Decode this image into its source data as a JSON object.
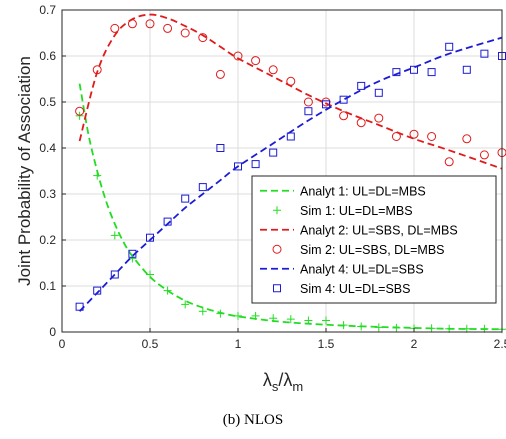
{
  "caption": "(b) NLOS",
  "colors": {
    "green": "#22dd22",
    "red": "#e01b1b",
    "blue": "#1c1cd6",
    "axis": "#262626",
    "grid": "#dcdcdc"
  },
  "chart_data": {
    "type": "line",
    "title": "",
    "ylabel": "Joint Probability of Association",
    "xlabel": {
      "main": "λ",
      "sub1": "s",
      "sep": "/λ",
      "sub2": "m"
    },
    "xlim": [
      0,
      2.5
    ],
    "ylim": [
      0,
      0.7
    ],
    "xticks": [
      0,
      0.5,
      1,
      1.5,
      2,
      2.5
    ],
    "xtick_labels": [
      "0",
      "0.5",
      "1",
      "1.5",
      "2",
      "2.5"
    ],
    "yticks": [
      0,
      0.1,
      0.2,
      0.3,
      0.4,
      0.5,
      0.6,
      0.7
    ],
    "ytick_labels": [
      "0",
      "0.1",
      "0.2",
      "0.3",
      "0.4",
      "0.5",
      "0.6",
      "0.7"
    ],
    "grid": true,
    "legend_position": "center-right",
    "series": [
      {
        "name": "Analyt 1: UL=DL=MBS",
        "style": "dashed",
        "color": "#22dd22",
        "x": [
          0.1,
          0.15,
          0.2,
          0.25,
          0.3,
          0.35,
          0.4,
          0.5,
          0.6,
          0.7,
          0.8,
          0.9,
          1.0,
          1.2,
          1.4,
          1.6,
          1.8,
          2.0,
          2.2,
          2.5
        ],
        "y": [
          0.54,
          0.43,
          0.35,
          0.285,
          0.235,
          0.195,
          0.165,
          0.12,
          0.09,
          0.068,
          0.053,
          0.042,
          0.034,
          0.024,
          0.018,
          0.014,
          0.011,
          0.009,
          0.007,
          0.006
        ]
      },
      {
        "name": "Sim    1: UL=DL=MBS",
        "style": "plus",
        "color": "#22dd22",
        "x": [
          0.1,
          0.2,
          0.3,
          0.4,
          0.5,
          0.6,
          0.7,
          0.8,
          0.9,
          1.0,
          1.1,
          1.2,
          1.3,
          1.4,
          1.5,
          1.6,
          1.7,
          1.8,
          1.9,
          2.0,
          2.1,
          2.2,
          2.3,
          2.4,
          2.5
        ],
        "y": [
          0.47,
          0.34,
          0.21,
          0.16,
          0.125,
          0.09,
          0.06,
          0.045,
          0.04,
          0.035,
          0.035,
          0.03,
          0.028,
          0.025,
          0.025,
          0.015,
          0.012,
          0.01,
          0.009,
          0.008,
          0.008,
          0.007,
          0.007,
          0.007,
          0.006
        ]
      },
      {
        "name": "Analyt 2: UL=SBS, DL=MBS",
        "style": "dashed",
        "color": "#e01b1b",
        "x": [
          0.1,
          0.2,
          0.3,
          0.4,
          0.5,
          0.6,
          0.7,
          0.8,
          0.9,
          1.0,
          1.2,
          1.4,
          1.6,
          1.8,
          2.0,
          2.2,
          2.5
        ],
        "y": [
          0.415,
          0.565,
          0.645,
          0.68,
          0.69,
          0.682,
          0.665,
          0.645,
          0.62,
          0.595,
          0.555,
          0.515,
          0.48,
          0.45,
          0.42,
          0.395,
          0.355
        ]
      },
      {
        "name": "Sim    2: UL=SBS, DL=MBS",
        "style": "circle",
        "color": "#e01b1b",
        "x": [
          0.1,
          0.2,
          0.3,
          0.4,
          0.5,
          0.6,
          0.7,
          0.8,
          0.9,
          1.0,
          1.1,
          1.2,
          1.3,
          1.4,
          1.5,
          1.6,
          1.7,
          1.8,
          1.9,
          2.0,
          2.1,
          2.2,
          2.3,
          2.4,
          2.5
        ],
        "y": [
          0.48,
          0.57,
          0.66,
          0.67,
          0.67,
          0.66,
          0.65,
          0.64,
          0.56,
          0.6,
          0.59,
          0.57,
          0.545,
          0.5,
          0.5,
          0.47,
          0.455,
          0.465,
          0.425,
          0.43,
          0.425,
          0.37,
          0.42,
          0.385,
          0.39
        ]
      },
      {
        "name": "Analyt 4: UL=DL=SBS",
        "style": "dashed",
        "color": "#1c1cd6",
        "x": [
          0.1,
          0.2,
          0.3,
          0.4,
          0.5,
          0.6,
          0.7,
          0.8,
          0.9,
          1.0,
          1.2,
          1.4,
          1.6,
          1.8,
          2.0,
          2.2,
          2.5
        ],
        "y": [
          0.045,
          0.085,
          0.125,
          0.165,
          0.2,
          0.235,
          0.27,
          0.3,
          0.33,
          0.36,
          0.41,
          0.46,
          0.505,
          0.545,
          0.575,
          0.605,
          0.64
        ]
      },
      {
        "name": "Sim    4: UL=DL=SBS",
        "style": "square",
        "color": "#1c1cd6",
        "x": [
          0.1,
          0.2,
          0.3,
          0.4,
          0.5,
          0.6,
          0.7,
          0.8,
          0.9,
          1.0,
          1.1,
          1.2,
          1.3,
          1.4,
          1.5,
          1.6,
          1.7,
          1.8,
          1.9,
          2.0,
          2.1,
          2.2,
          2.3,
          2.4,
          2.5
        ],
        "y": [
          0.055,
          0.09,
          0.125,
          0.17,
          0.205,
          0.24,
          0.29,
          0.315,
          0.4,
          0.36,
          0.365,
          0.39,
          0.425,
          0.48,
          0.495,
          0.505,
          0.535,
          0.52,
          0.565,
          0.57,
          0.565,
          0.62,
          0.57,
          0.605,
          0.6
        ]
      }
    ]
  }
}
